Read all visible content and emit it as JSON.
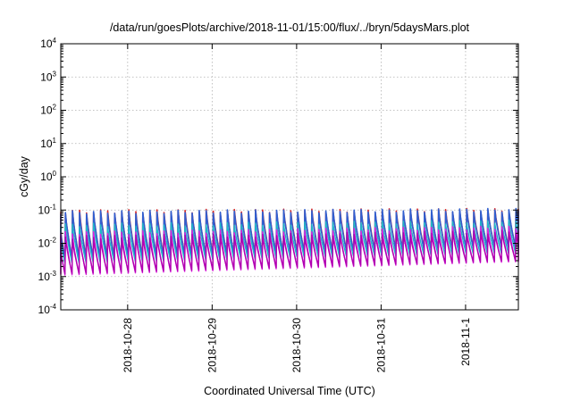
{
  "chart_data": {
    "type": "line",
    "title": "/data/run/goesPlots/archive/2018-11-01/15:00/flux/../bryn/5daysMars.plot",
    "xlabel": "Coordinated Universal Time (UTC)",
    "ylabel": "cGy/day",
    "yscale": "log",
    "ylim": [
      0.0001,
      10000
    ],
    "xlim": [
      "2018-10-27 05:00",
      "2018-11-01 15:00"
    ],
    "y_ticks": [
      {
        "base": "10",
        "exp": "-4"
      },
      {
        "base": "10",
        "exp": "-3"
      },
      {
        "base": "10",
        "exp": "-2"
      },
      {
        "base": "10",
        "exp": "-1"
      },
      {
        "base": "10",
        "exp": "0"
      },
      {
        "base": "10",
        "exp": "1"
      },
      {
        "base": "10",
        "exp": "2"
      },
      {
        "base": "10",
        "exp": "3"
      },
      {
        "base": "10",
        "exp": "4"
      }
    ],
    "x_ticks": [
      "2018-10-28",
      "2018-10-29",
      "2018-10-30",
      "2018-10-31",
      "2018-11-1"
    ],
    "grid": true,
    "legend": "none",
    "pattern": {
      "period_hours": 2.0,
      "description": "sawtooth: value rises sharply at each period start then decays",
      "series": [
        {
          "color": "#d62728",
          "peak_start": 0.09,
          "peak_end": 0.1,
          "trough_start": 0.0035,
          "trough_end": 0.008
        },
        {
          "color": "#2f5fd0",
          "peak_start": 0.085,
          "peak_end": 0.1,
          "trough_start": 0.0033,
          "trough_end": 0.0075
        },
        {
          "color": "#20b8c8",
          "peak_start": 0.035,
          "peak_end": 0.045,
          "trough_start": 0.0025,
          "trough_end": 0.005
        },
        {
          "color": "#e020e0",
          "peak_start": 0.02,
          "peak_end": 0.03,
          "trough_start": 0.0011,
          "trough_end": 0.0028
        },
        {
          "color": "#b000b0",
          "peak_start": 0.015,
          "peak_end": 0.022,
          "trough_start": 0.0012,
          "trough_end": 0.003
        }
      ]
    }
  }
}
